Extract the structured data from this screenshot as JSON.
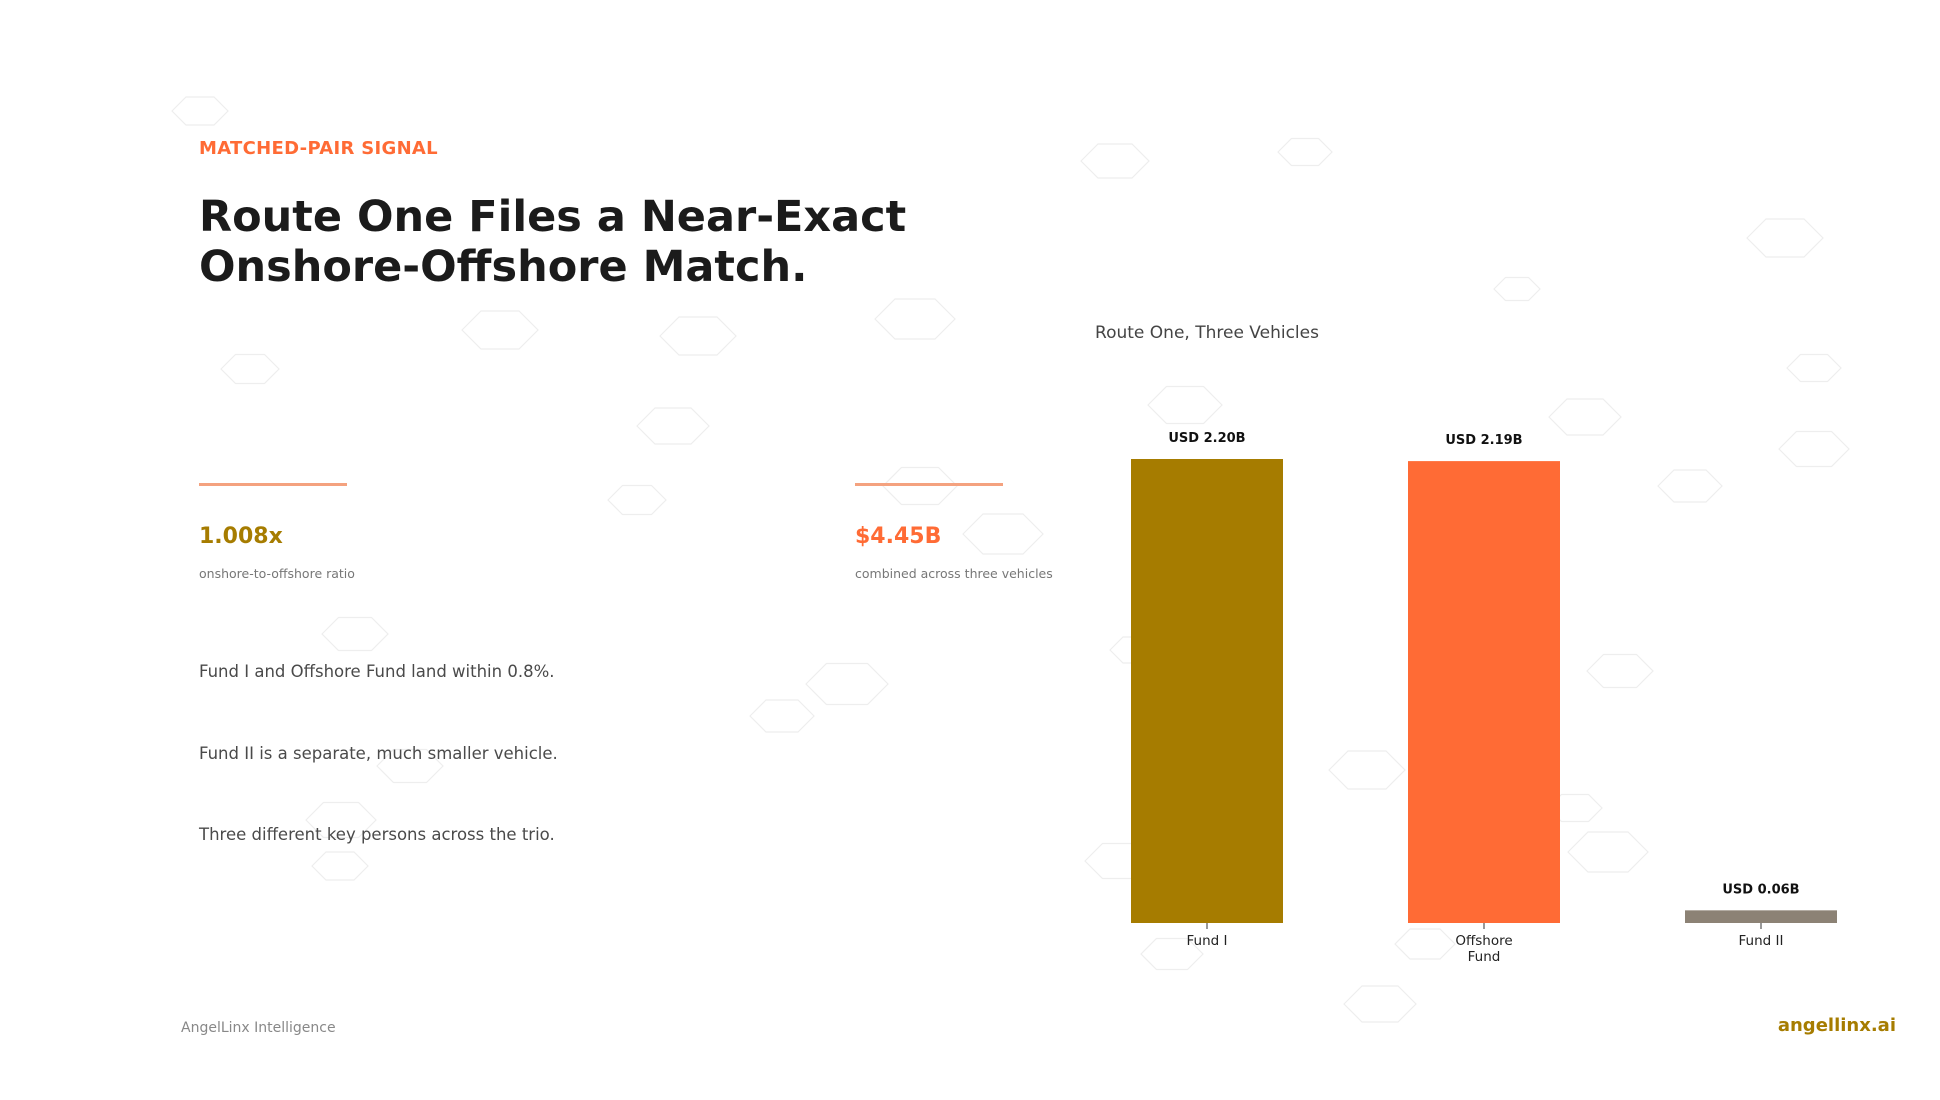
{
  "eyebrow": "MATCHED-PAIR SIGNAL",
  "title_lines": [
    "Route One Files a Near-Exact",
    "Onshore-Offshore Match."
  ],
  "stats": [
    {
      "value": "1.008x",
      "label": "onshore-to-offshore ratio",
      "color": "#a67c00"
    },
    {
      "value": "$4.45B",
      "label": "combined across three vehicles",
      "color": "#ff6b35"
    }
  ],
  "bullets": [
    "Fund I and Offshore Fund land within 0.8%.",
    "Fund II is a separate, much smaller vehicle.",
    "Three different key persons across the trio."
  ],
  "footer": {
    "left": "AngelLinx Intelligence",
    "right": "angellinx.ai"
  },
  "chart_data": {
    "type": "bar",
    "title": "Route One, Three Vehicles",
    "categories": [
      [
        "Fund I"
      ],
      [
        "Offshore",
        "Fund"
      ],
      [
        "Fund II"
      ]
    ],
    "values": [
      2.2,
      2.19,
      0.06
    ],
    "value_labels": [
      "USD 2.20B",
      "USD 2.19B",
      "USD 0.06B"
    ],
    "colors": [
      "#a67c00",
      "#ff6b35",
      "#8c8275"
    ],
    "ylim": [
      0,
      2.2
    ],
    "grid": false,
    "xlabel": "",
    "ylabel": ""
  }
}
